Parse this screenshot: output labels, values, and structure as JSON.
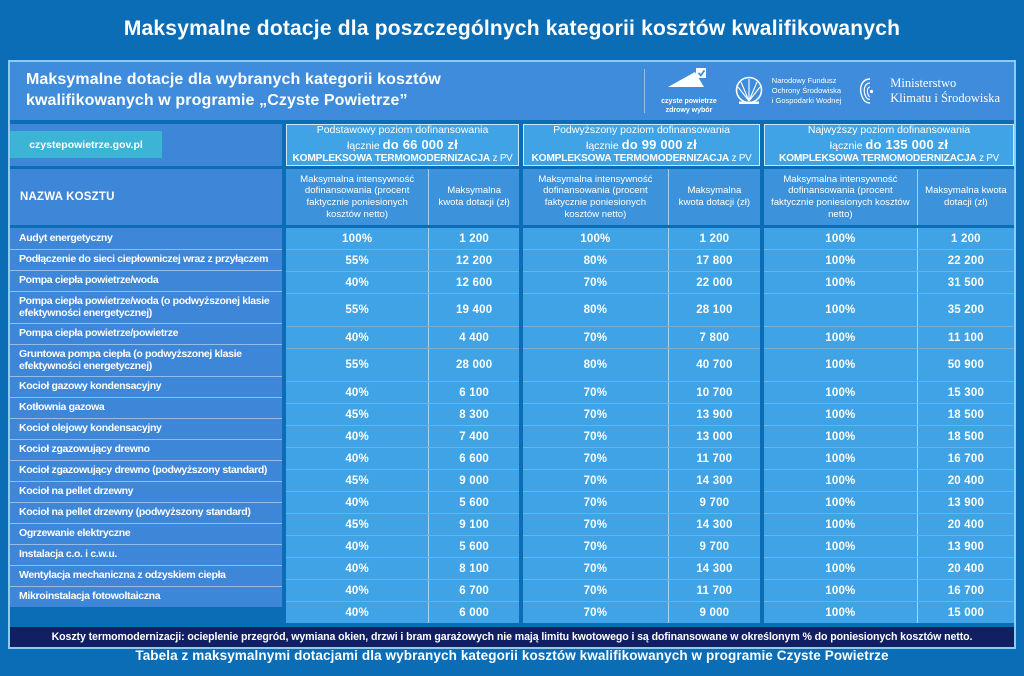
{
  "page": {
    "title": "Maksymalne dotacje dla poszczególnych kategorii kosztów kwalifikowanych",
    "footer": "Tabela z maksymalnymi dotacjami dla wybranych kategorii kosztów kwalifikowanych w programie Czyste Powietrze"
  },
  "panel": {
    "header": {
      "title_line1": "Maksymalne dotacje dla wybranych kategorii kosztów",
      "title_line2": "kwalifikowanych w programie „Czyste Powietrze”",
      "logos": [
        {
          "icon": "czyste-powietrze-house-check-icon",
          "line1": "czyste powietrze",
          "line2": "zdrowy wybór"
        },
        {
          "icon": "nfosigw-tree-circle-icon",
          "line1": "Narodowy Fundusz",
          "line2": "Ochrony Środowiska",
          "line3": "i Gospodarki Wodnej"
        },
        {
          "icon": "ministry-eagle-icon",
          "line1": "Ministerstwo",
          "line2": "Klimatu i Środowiska"
        }
      ]
    },
    "site_tab": "czystepowietrze.gov.pl",
    "note": "Koszty termomodernizacji: ocieplenie przegród, wymiana okien, drzwi i bram garażowych nie mają limitu kwotowego i są dofinansowane w określonym % do poniesionych kosztów netto."
  },
  "table": {
    "name_header": "NAZWA KOSZTU",
    "groups": [
      {
        "line1": "Podstawowy poziom dofinansowania",
        "line2_prefix": "łącznie ",
        "line2_bold": "do 66 000 zł",
        "line3_bold": "KOMPLEKSOWA TERMOMODERNIZACJA",
        "line3_suffix": " z PV"
      },
      {
        "line1": "Podwyższony poziom dofinansowania",
        "line2_prefix": "łącznie ",
        "line2_bold": "do 99 000 zł",
        "line3_bold": "KOMPLEKSOWA TERMOMODERNIZACJA",
        "line3_suffix": " z PV"
      },
      {
        "line1": "Najwyższy poziom dofinansowania",
        "line2_prefix": "łącznie ",
        "line2_bold": "do 135 000 zł",
        "line3_bold": "KOMPLEKSOWA TERMOMODERNIZACJA",
        "line3_suffix": " z PV"
      }
    ],
    "subheaders": {
      "intensity": "Maksymalna intensywność dofinansowania (procent faktycznie ponie­sionych kosztów netto)",
      "amount": "Maksymalna kwota dotacji (zł)"
    },
    "rows": [
      {
        "name": "Audyt energetyczny",
        "tall": false,
        "values": [
          "100%",
          "1 200",
          "100%",
          "1 200",
          "100%",
          "1 200"
        ]
      },
      {
        "name": "Podłączenie do sieci ciepłowniczej wraz z przyłączem",
        "tall": false,
        "values": [
          "55%",
          "12 200",
          "80%",
          "17 800",
          "100%",
          "22 200"
        ]
      },
      {
        "name": "Pompa ciepła powietrze/woda",
        "tall": false,
        "values": [
          "40%",
          "12 600",
          "70%",
          "22 000",
          "100%",
          "31 500"
        ]
      },
      {
        "name": "Pompa ciepła powietrze/woda (o podwyższonej klasie efektywności energetycznej)",
        "tall": true,
        "values": [
          "55%",
          "19 400",
          "80%",
          "28 100",
          "100%",
          "35 200"
        ]
      },
      {
        "name": "Pompa ciepła powietrze/powietrze",
        "tall": false,
        "values": [
          "40%",
          "4 400",
          "70%",
          "7 800",
          "100%",
          "11 100"
        ]
      },
      {
        "name": "Gruntowa pompa ciepła (o podwyższonej klasie efektywności energetycznej)",
        "tall": true,
        "values": [
          "55%",
          "28 000",
          "80%",
          "40 700",
          "100%",
          "50 900"
        ]
      },
      {
        "name": "Kocioł gazowy kondensacyjny",
        "tall": false,
        "values": [
          "40%",
          "6 100",
          "70%",
          "10 700",
          "100%",
          "15 300"
        ]
      },
      {
        "name": "Kotłownia gazowa",
        "tall": false,
        "values": [
          "45%",
          "8 300",
          "70%",
          "13 900",
          "100%",
          "18 500"
        ]
      },
      {
        "name": "Kocioł olejowy kondensacyjny",
        "tall": false,
        "values": [
          "40%",
          "7 400",
          "70%",
          "13 000",
          "100%",
          "18 500"
        ]
      },
      {
        "name": "Kocioł zgazowujący drewno",
        "tall": false,
        "values": [
          "40%",
          "6 600",
          "70%",
          "11 700",
          "100%",
          "16 700"
        ]
      },
      {
        "name": "Kocioł zgazowujący drewno (podwyższony standard)",
        "tall": false,
        "values": [
          "45%",
          "9 000",
          "70%",
          "14 300",
          "100%",
          "20 400"
        ]
      },
      {
        "name": "Kocioł na pellet drzewny",
        "tall": false,
        "values": [
          "40%",
          "5 600",
          "70%",
          "9 700",
          "100%",
          "13 900"
        ]
      },
      {
        "name": "Kocioł na pellet drzewny (podwyższony standard)",
        "tall": false,
        "values": [
          "45%",
          "9 100",
          "70%",
          "14 300",
          "100%",
          "20 400"
        ]
      },
      {
        "name": "Ogrzewanie elektryczne",
        "tall": false,
        "values": [
          "40%",
          "5 600",
          "70%",
          "9 700",
          "100%",
          "13 900"
        ]
      },
      {
        "name": "Instalacja c.o. i c.w.u.",
        "tall": false,
        "values": [
          "40%",
          "8 100",
          "70%",
          "14 300",
          "100%",
          "20 400"
        ]
      },
      {
        "name": "Wentylacja mechaniczna z odzyskiem ciepła",
        "tall": false,
        "values": [
          "40%",
          "6 700",
          "70%",
          "11 700",
          "100%",
          "16 700"
        ]
      },
      {
        "name": "Mikroinstalacja fotowoltaiczna",
        "tall": false,
        "values": [
          "40%",
          "6 000",
          "70%",
          "9 000",
          "100%",
          "15 000"
        ]
      }
    ]
  },
  "colors": {
    "page_background": "#0B6DB6",
    "header_band": "#3E8CDB",
    "name_column": "#3E86D8",
    "value_cell": "#3FA3E5",
    "subheader_cell": "#3D92DC",
    "site_tab": "#3CB4D6",
    "note_bar": "#121F63",
    "panel_border": "#8FCBEE",
    "text": "#FFFFFF"
  }
}
